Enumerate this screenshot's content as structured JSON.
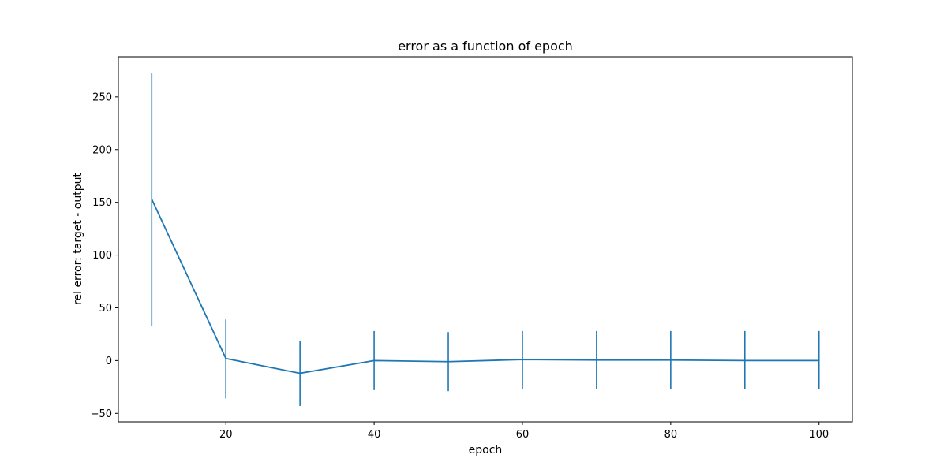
{
  "chart_data": {
    "type": "line",
    "title": "error as a function of epoch",
    "xlabel": "epoch",
    "ylabel": "rel error: target - output",
    "xlim": [
      5.5,
      104.5
    ],
    "ylim": [
      -58,
      288
    ],
    "xticks": [
      20,
      40,
      60,
      80,
      100
    ],
    "yticks": [
      -50,
      0,
      50,
      100,
      150,
      200,
      250
    ],
    "xtick_labels": [
      "20",
      "40",
      "60",
      "80",
      "100"
    ],
    "ytick_labels": [
      "−50",
      "0",
      "50",
      "100",
      "150",
      "200",
      "250"
    ],
    "grid": false,
    "legend": false,
    "color": "#1f77b4",
    "series": [
      {
        "x": [
          10,
          20,
          30,
          40,
          50,
          60,
          70,
          80,
          90,
          100
        ],
        "y": [
          153,
          2,
          -12,
          0,
          -1,
          1,
          0.5,
          0.5,
          0,
          0
        ],
        "yerr_lower": [
          33,
          -36,
          -43,
          -28,
          -29,
          -27,
          -27,
          -27,
          -27,
          -27
        ],
        "yerr_upper": [
          273,
          39,
          19,
          28,
          27,
          28,
          28,
          28,
          28,
          28
        ]
      }
    ]
  }
}
